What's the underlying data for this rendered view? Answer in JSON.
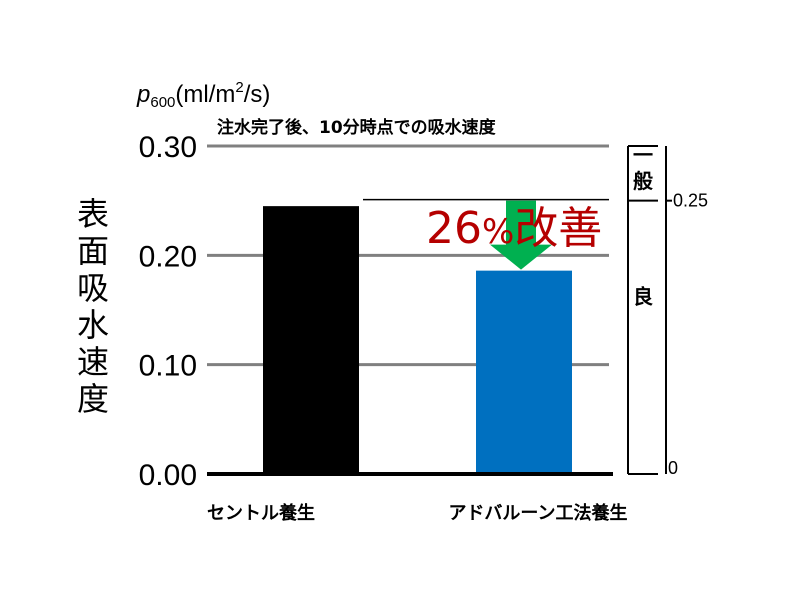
{
  "chart_data": {
    "type": "bar",
    "unit": {
      "var": "p",
      "sub": "600",
      "rest_a": "(ml/m",
      "sup": "2",
      "rest_b": "/s)"
    },
    "title": "注水完了後、10分時点での吸水速度",
    "ylabel": "表面吸水速度",
    "ylim": [
      0,
      0.3
    ],
    "yticks": [
      "0.00",
      "0.10",
      "0.20",
      "0.30"
    ],
    "grid": true,
    "categories": [
      "セントル養生",
      "アドバルーン工法養生"
    ],
    "values": [
      0.245,
      0.186
    ],
    "bar_colors": [
      "#000000",
      "#0070c0"
    ],
    "annotation": {
      "num": "26",
      "pct": "%",
      "rest": "改善",
      "color": "#b50000",
      "arrow_color": "#00b050"
    },
    "reference_value": 0.25,
    "scale": {
      "labels": [
        {
          "text": "一般",
          "from": 0.25,
          "to": 0.3
        },
        {
          "text": "良",
          "from": 0,
          "to": 0.25
        }
      ],
      "tick_labels": [
        {
          "text": "0.25",
          "value": 0.25
        },
        {
          "text": "0",
          "value": 0
        }
      ]
    }
  }
}
